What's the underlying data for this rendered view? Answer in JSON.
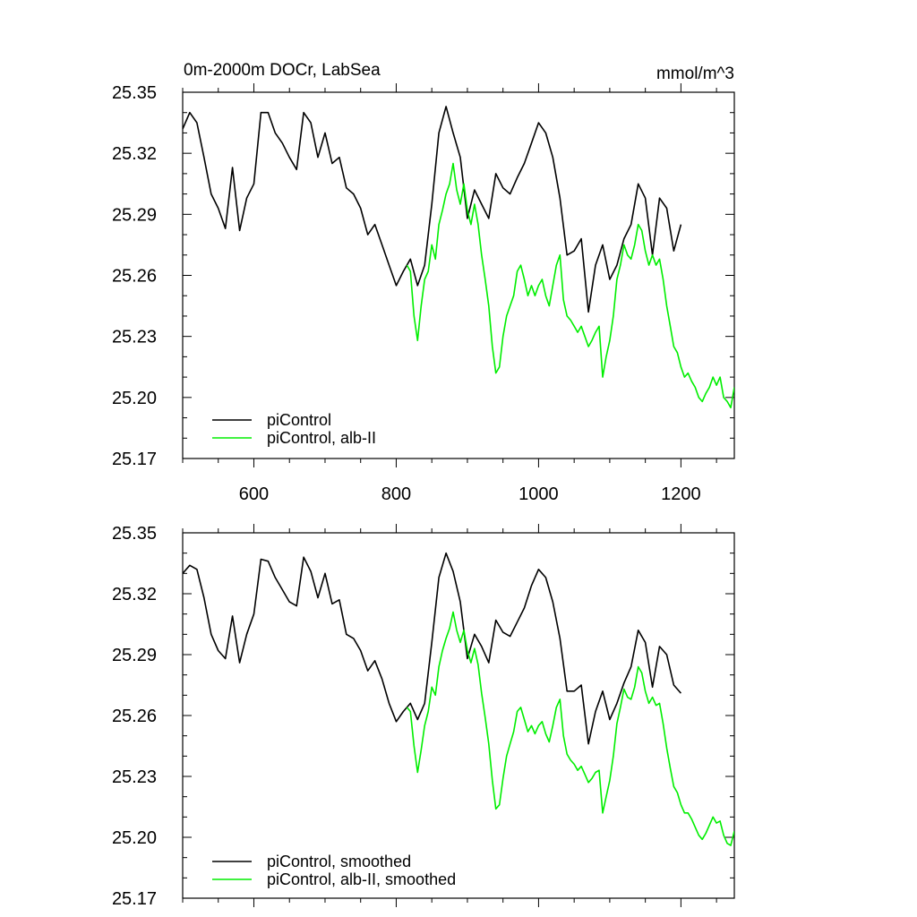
{
  "figure": {
    "title_left": "0m-2000m DOCr, LabSea",
    "title_right": "mmol/m^3"
  },
  "colors": {
    "control": "#000000",
    "albII": "#00ee00"
  },
  "chart_data": [
    {
      "type": "line",
      "xlim": [
        500,
        1275
      ],
      "ylim": [
        25.17,
        25.35
      ],
      "x_ticks": [
        600,
        800,
        1000,
        1200
      ],
      "x_tick_labels": [
        "600",
        "800",
        "1000",
        "1200"
      ],
      "y_ticks": [
        25.17,
        25.2,
        25.23,
        25.26,
        25.29,
        25.32,
        25.35
      ],
      "y_tick_labels": [
        "25.17",
        "25.20",
        "25.23",
        "25.26",
        "25.29",
        "25.32",
        "25.35"
      ],
      "grid": false,
      "legend_position": "bottom-left",
      "series": [
        {
          "name": "piControl",
          "color": "#000000",
          "x": [
            500,
            510,
            520,
            530,
            540,
            550,
            560,
            570,
            580,
            590,
            600,
            610,
            620,
            630,
            640,
            650,
            660,
            670,
            680,
            690,
            700,
            710,
            720,
            730,
            740,
            750,
            760,
            770,
            780,
            790,
            800,
            810,
            820,
            830,
            840,
            850,
            860,
            870,
            880,
            890,
            900,
            910,
            920,
            930,
            940,
            950,
            960,
            970,
            980,
            990,
            1000,
            1010,
            1020,
            1030,
            1040,
            1050,
            1060,
            1070,
            1080,
            1090,
            1100,
            1110,
            1120,
            1130,
            1140,
            1150,
            1160,
            1170,
            1180,
            1190,
            1200
          ],
          "values": [
            25.332,
            25.34,
            25.335,
            25.318,
            25.3,
            25.293,
            25.283,
            25.313,
            25.282,
            25.298,
            25.305,
            25.34,
            25.34,
            25.33,
            25.325,
            25.318,
            25.312,
            25.34,
            25.335,
            25.318,
            25.33,
            25.315,
            25.318,
            25.303,
            25.3,
            25.293,
            25.28,
            25.285,
            25.275,
            25.265,
            25.255,
            25.262,
            25.268,
            25.255,
            25.265,
            25.295,
            25.33,
            25.343,
            25.33,
            25.318,
            25.288,
            25.302,
            25.295,
            25.288,
            25.31,
            25.303,
            25.3,
            25.308,
            25.315,
            25.325,
            25.335,
            25.33,
            25.318,
            25.298,
            25.27,
            25.272,
            25.278,
            25.242,
            25.265,
            25.275,
            25.258,
            25.265,
            25.278,
            25.285,
            25.305,
            25.298,
            25.27,
            25.298,
            25.293,
            25.272,
            25.285
          ]
        },
        {
          "name": "piControl, alb-II",
          "color": "#00ee00",
          "x": [
            815,
            820,
            825,
            830,
            835,
            840,
            845,
            850,
            855,
            860,
            865,
            870,
            875,
            880,
            885,
            890,
            895,
            900,
            905,
            910,
            915,
            920,
            925,
            930,
            935,
            940,
            945,
            950,
            955,
            960,
            965,
            970,
            975,
            980,
            985,
            990,
            995,
            1000,
            1005,
            1010,
            1015,
            1020,
            1025,
            1030,
            1035,
            1040,
            1045,
            1050,
            1055,
            1060,
            1065,
            1070,
            1075,
            1080,
            1085,
            1090,
            1095,
            1100,
            1105,
            1110,
            1115,
            1120,
            1125,
            1130,
            1135,
            1140,
            1145,
            1150,
            1155,
            1160,
            1165,
            1170,
            1175,
            1180,
            1185,
            1190,
            1195,
            1200,
            1205,
            1210,
            1215,
            1220,
            1225,
            1230,
            1235,
            1240,
            1245,
            1250,
            1255,
            1260,
            1265,
            1270,
            1275
          ],
          "values": [
            25.265,
            25.262,
            25.24,
            25.228,
            25.245,
            25.258,
            25.262,
            25.275,
            25.268,
            25.285,
            25.292,
            25.3,
            25.305,
            25.315,
            25.302,
            25.295,
            25.305,
            25.292,
            25.285,
            25.295,
            25.285,
            25.27,
            25.258,
            25.245,
            25.225,
            25.212,
            25.215,
            25.23,
            25.24,
            25.245,
            25.25,
            25.262,
            25.265,
            25.258,
            25.25,
            25.255,
            25.25,
            25.255,
            25.258,
            25.25,
            25.245,
            25.255,
            25.265,
            25.27,
            25.248,
            25.24,
            25.238,
            25.235,
            25.232,
            25.235,
            25.23,
            25.225,
            25.228,
            25.232,
            25.235,
            25.21,
            25.22,
            25.228,
            25.24,
            25.258,
            25.265,
            25.275,
            25.27,
            25.268,
            25.275,
            25.285,
            25.282,
            25.272,
            25.265,
            25.27,
            25.265,
            25.268,
            25.258,
            25.245,
            25.235,
            25.225,
            25.222,
            25.215,
            25.21,
            25.212,
            25.208,
            25.205,
            25.2,
            25.198,
            25.202,
            25.205,
            25.21,
            25.206,
            25.21,
            25.2,
            25.198,
            25.195,
            25.205
          ]
        }
      ]
    },
    {
      "type": "line",
      "xlim": [
        500,
        1275
      ],
      "ylim": [
        25.17,
        25.35
      ],
      "x_ticks": [
        600,
        800,
        1000,
        1200
      ],
      "x_tick_labels": [],
      "y_ticks": [
        25.17,
        25.2,
        25.23,
        25.26,
        25.29,
        25.32,
        25.35
      ],
      "y_tick_labels": [
        "25.17",
        "25.20",
        "25.23",
        "25.26",
        "25.29",
        "25.32",
        "25.35"
      ],
      "grid": false,
      "legend_position": "bottom-left",
      "series": [
        {
          "name": "piControl, smoothed",
          "color": "#000000",
          "x": [
            500,
            510,
            520,
            530,
            540,
            550,
            560,
            570,
            580,
            590,
            600,
            610,
            620,
            630,
            640,
            650,
            660,
            670,
            680,
            690,
            700,
            710,
            720,
            730,
            740,
            750,
            760,
            770,
            780,
            790,
            800,
            810,
            820,
            830,
            840,
            850,
            860,
            870,
            880,
            890,
            900,
            910,
            920,
            930,
            940,
            950,
            960,
            970,
            980,
            990,
            1000,
            1010,
            1020,
            1030,
            1040,
            1050,
            1060,
            1070,
            1080,
            1090,
            1100,
            1110,
            1120,
            1130,
            1140,
            1150,
            1160,
            1170,
            1180,
            1190,
            1200
          ],
          "values": [
            25.33,
            25.334,
            25.332,
            25.318,
            25.3,
            25.292,
            25.288,
            25.309,
            25.286,
            25.3,
            25.31,
            25.337,
            25.336,
            25.328,
            25.322,
            25.316,
            25.314,
            25.338,
            25.331,
            25.318,
            25.33,
            25.315,
            25.317,
            25.3,
            25.298,
            25.292,
            25.282,
            25.287,
            25.278,
            25.266,
            25.257,
            25.262,
            25.266,
            25.258,
            25.266,
            25.296,
            25.328,
            25.34,
            25.331,
            25.316,
            25.288,
            25.3,
            25.294,
            25.286,
            25.307,
            25.301,
            25.299,
            25.306,
            25.313,
            25.324,
            25.332,
            25.328,
            25.316,
            25.298,
            25.272,
            25.272,
            25.275,
            25.246,
            25.262,
            25.272,
            25.258,
            25.266,
            25.276,
            25.284,
            25.302,
            25.296,
            25.274,
            25.294,
            25.29,
            25.275,
            25.271
          ]
        },
        {
          "name": "piControl, alb-II, smoothed",
          "color": "#00ee00",
          "x": [
            815,
            820,
            825,
            830,
            835,
            840,
            845,
            850,
            855,
            860,
            865,
            870,
            875,
            880,
            885,
            890,
            895,
            900,
            905,
            910,
            915,
            920,
            925,
            930,
            935,
            940,
            945,
            950,
            955,
            960,
            965,
            970,
            975,
            980,
            985,
            990,
            995,
            1000,
            1005,
            1010,
            1015,
            1020,
            1025,
            1030,
            1035,
            1040,
            1045,
            1050,
            1055,
            1060,
            1065,
            1070,
            1075,
            1080,
            1085,
            1090,
            1095,
            1100,
            1105,
            1110,
            1115,
            1120,
            1125,
            1130,
            1135,
            1140,
            1145,
            1150,
            1155,
            1160,
            1165,
            1170,
            1175,
            1180,
            1185,
            1190,
            1195,
            1200,
            1205,
            1210,
            1215,
            1220,
            1225,
            1230,
            1235,
            1240,
            1245,
            1250,
            1255,
            1260,
            1265,
            1270,
            1275
          ],
          "values": [
            25.264,
            25.262,
            25.245,
            25.232,
            25.243,
            25.255,
            25.262,
            25.274,
            25.27,
            25.284,
            25.292,
            25.298,
            25.303,
            25.311,
            25.302,
            25.296,
            25.302,
            25.292,
            25.286,
            25.293,
            25.285,
            25.271,
            25.259,
            25.246,
            25.228,
            25.214,
            25.216,
            25.229,
            25.24,
            25.246,
            25.252,
            25.262,
            25.264,
            25.258,
            25.252,
            25.255,
            25.251,
            25.255,
            25.257,
            25.251,
            25.247,
            25.255,
            25.264,
            25.268,
            25.25,
            25.241,
            25.238,
            25.236,
            25.233,
            25.235,
            25.231,
            25.227,
            25.229,
            25.232,
            25.233,
            25.212,
            25.22,
            25.228,
            25.24,
            25.256,
            25.264,
            25.273,
            25.269,
            25.268,
            25.274,
            25.284,
            25.281,
            25.272,
            25.266,
            25.269,
            25.265,
            25.266,
            25.256,
            25.244,
            25.234,
            25.225,
            25.222,
            25.216,
            25.212,
            25.212,
            25.209,
            25.205,
            25.201,
            25.199,
            25.202,
            25.206,
            25.21,
            25.207,
            25.208,
            25.201,
            25.197,
            25.196,
            25.203
          ]
        }
      ]
    }
  ]
}
